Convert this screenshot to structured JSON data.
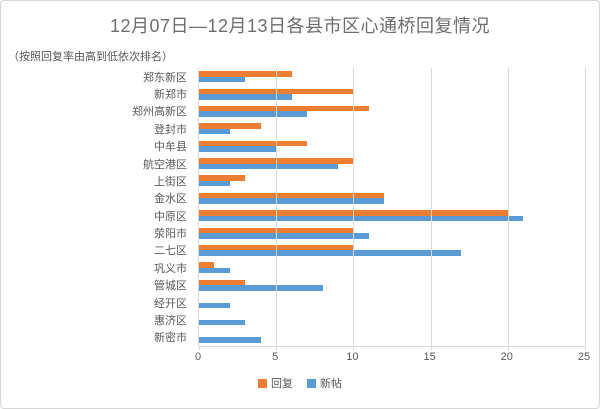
{
  "chart_data": {
    "type": "bar",
    "orientation": "horizontal",
    "title": "12月07日—12月13日各县市区心通桥回复情况",
    "subtitle": "（按照回复率由高到低依次排名）",
    "categories": [
      "郑东新区",
      "新郑市",
      "郑州高新区",
      "登封市",
      "中牟县",
      "航空港区",
      "上街区",
      "金水区",
      "中原区",
      "荥阳市",
      "二七区",
      "巩义市",
      "管城区",
      "经开区",
      "惠济区",
      "新密市"
    ],
    "series": [
      {
        "key": "replies",
        "name": "回复",
        "color": "#ED7D31",
        "values": [
          6,
          10,
          11,
          4,
          7,
          10,
          3,
          12,
          20,
          10,
          10,
          1,
          3,
          0,
          0,
          0
        ]
      },
      {
        "key": "new-posts",
        "name": "新帖",
        "color": "#5B9BD5",
        "values": [
          3,
          6,
          7,
          2,
          5,
          9,
          2,
          12,
          21,
          11,
          17,
          2,
          8,
          2,
          3,
          4
        ]
      }
    ],
    "x_axis": {
      "min": 0,
      "max": 25,
      "ticks": [
        0,
        5,
        10,
        15,
        20,
        25
      ]
    },
    "grid": true,
    "legend_position": "bottom",
    "colors": {
      "grid": "#d9d9d9",
      "axis_text": "#595959",
      "title_text": "#6e6e6e"
    }
  }
}
